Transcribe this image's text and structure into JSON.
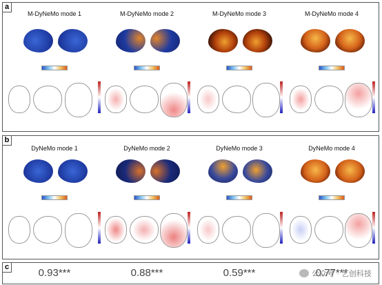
{
  "panel_a": {
    "label": "a",
    "titles": [
      "M-DyNeMo mode 1",
      "M-DyNeMo mode 2",
      "M-DyNeMo mode 3",
      "M-DyNeMo mode 4"
    ]
  },
  "panel_b": {
    "label": "b",
    "titles": [
      "DyNeMo mode 1",
      "DyNeMo mode 2",
      "DyNeMo mode 3",
      "DyNeMo mode 4"
    ]
  },
  "panel_c": {
    "label": "c",
    "scores": [
      "0.93***",
      "0.88***",
      "0.59***",
      "0.77***"
    ],
    "watermark": "公众号 · 艺创科技"
  },
  "colors": {
    "deep_blue": "#1a2a8a",
    "blue": "#2b5fd9",
    "dark": "#2a0d05",
    "orange": "#e6761c"
  },
  "icons": [
    "wechat-icon"
  ]
}
